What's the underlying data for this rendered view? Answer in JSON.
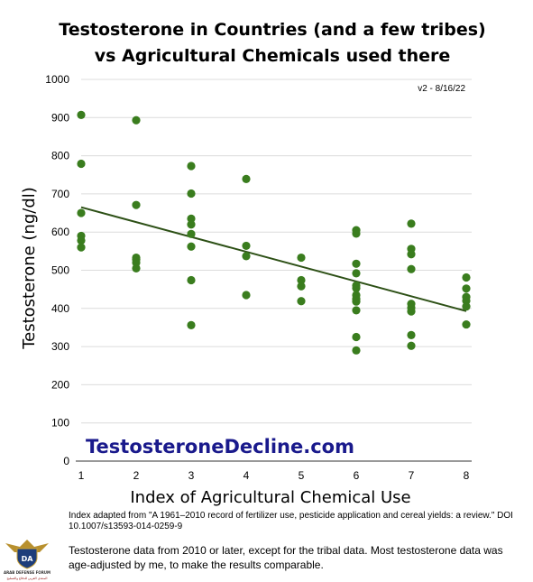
{
  "chart_data": {
    "type": "scatter",
    "title_lines": [
      "Testosterone in Countries (and a few tribes)",
      "vs Agricultural Chemicals used there"
    ],
    "xlabel": "Index of Agricultural Chemical Use",
    "ylabel": "Testosterone (ng/dl)",
    "xlim": [
      1,
      8
    ],
    "ylim": [
      0,
      1000
    ],
    "x_ticks": [
      1,
      2,
      3,
      4,
      5,
      6,
      7,
      8
    ],
    "y_ticks": [
      0,
      100,
      200,
      300,
      400,
      500,
      600,
      700,
      800,
      900,
      1000
    ],
    "grid": "horizontal",
    "point_color": "#3a7d1e",
    "trendline_color": "#2d5016",
    "trendline": {
      "x": [
        1,
        8
      ],
      "y": [
        665,
        393
      ]
    },
    "points": [
      {
        "x": 1,
        "y": 907
      },
      {
        "x": 1,
        "y": 779
      },
      {
        "x": 1,
        "y": 650
      },
      {
        "x": 1,
        "y": 590
      },
      {
        "x": 1,
        "y": 578
      },
      {
        "x": 1,
        "y": 560
      },
      {
        "x": 2,
        "y": 893
      },
      {
        "x": 2,
        "y": 671
      },
      {
        "x": 2,
        "y": 533
      },
      {
        "x": 2,
        "y": 528
      },
      {
        "x": 2,
        "y": 520
      },
      {
        "x": 2,
        "y": 505
      },
      {
        "x": 3,
        "y": 773
      },
      {
        "x": 3,
        "y": 701
      },
      {
        "x": 3,
        "y": 635
      },
      {
        "x": 3,
        "y": 620
      },
      {
        "x": 3,
        "y": 595
      },
      {
        "x": 3,
        "y": 562
      },
      {
        "x": 3,
        "y": 474
      },
      {
        "x": 3,
        "y": 356
      },
      {
        "x": 4,
        "y": 739
      },
      {
        "x": 4,
        "y": 564
      },
      {
        "x": 4,
        "y": 537
      },
      {
        "x": 4,
        "y": 435
      },
      {
        "x": 5,
        "y": 533
      },
      {
        "x": 5,
        "y": 474
      },
      {
        "x": 5,
        "y": 458
      },
      {
        "x": 5,
        "y": 419
      },
      {
        "x": 6,
        "y": 605
      },
      {
        "x": 6,
        "y": 596
      },
      {
        "x": 6,
        "y": 517
      },
      {
        "x": 6,
        "y": 492
      },
      {
        "x": 6,
        "y": 460
      },
      {
        "x": 6,
        "y": 453
      },
      {
        "x": 6,
        "y": 435
      },
      {
        "x": 6,
        "y": 425
      },
      {
        "x": 6,
        "y": 418
      },
      {
        "x": 6,
        "y": 395
      },
      {
        "x": 6,
        "y": 325
      },
      {
        "x": 6,
        "y": 290
      },
      {
        "x": 7,
        "y": 622
      },
      {
        "x": 7,
        "y": 556
      },
      {
        "x": 7,
        "y": 542
      },
      {
        "x": 7,
        "y": 503
      },
      {
        "x": 7,
        "y": 412
      },
      {
        "x": 7,
        "y": 402
      },
      {
        "x": 7,
        "y": 392
      },
      {
        "x": 7,
        "y": 330
      },
      {
        "x": 7,
        "y": 302
      },
      {
        "x": 8,
        "y": 481
      },
      {
        "x": 8,
        "y": 452
      },
      {
        "x": 8,
        "y": 430
      },
      {
        "x": 8,
        "y": 420
      },
      {
        "x": 8,
        "y": 405
      },
      {
        "x": 8,
        "y": 358
      }
    ],
    "version_label": "v2 - 8/16/22",
    "watermark": "TestosteroneDecline.com"
  },
  "notes": {
    "index_source": "Index adapted from \"A 1961–2010 record of fertilizer use, pesticide application and cereal yields: a review.\" DOI 10.1007/s13593-014-0259-9",
    "testosterone_source": "Testosterone data from 2010 or later, except for the tribal data. Most testosterone data was age-adjusted by me, to make the results comparable."
  },
  "logo": {
    "text_top": "DA",
    "text_mid": "ARAB DEFENSE FORUM",
    "text_bottom": "المنتدى العربي للدفاع والتسليح"
  }
}
